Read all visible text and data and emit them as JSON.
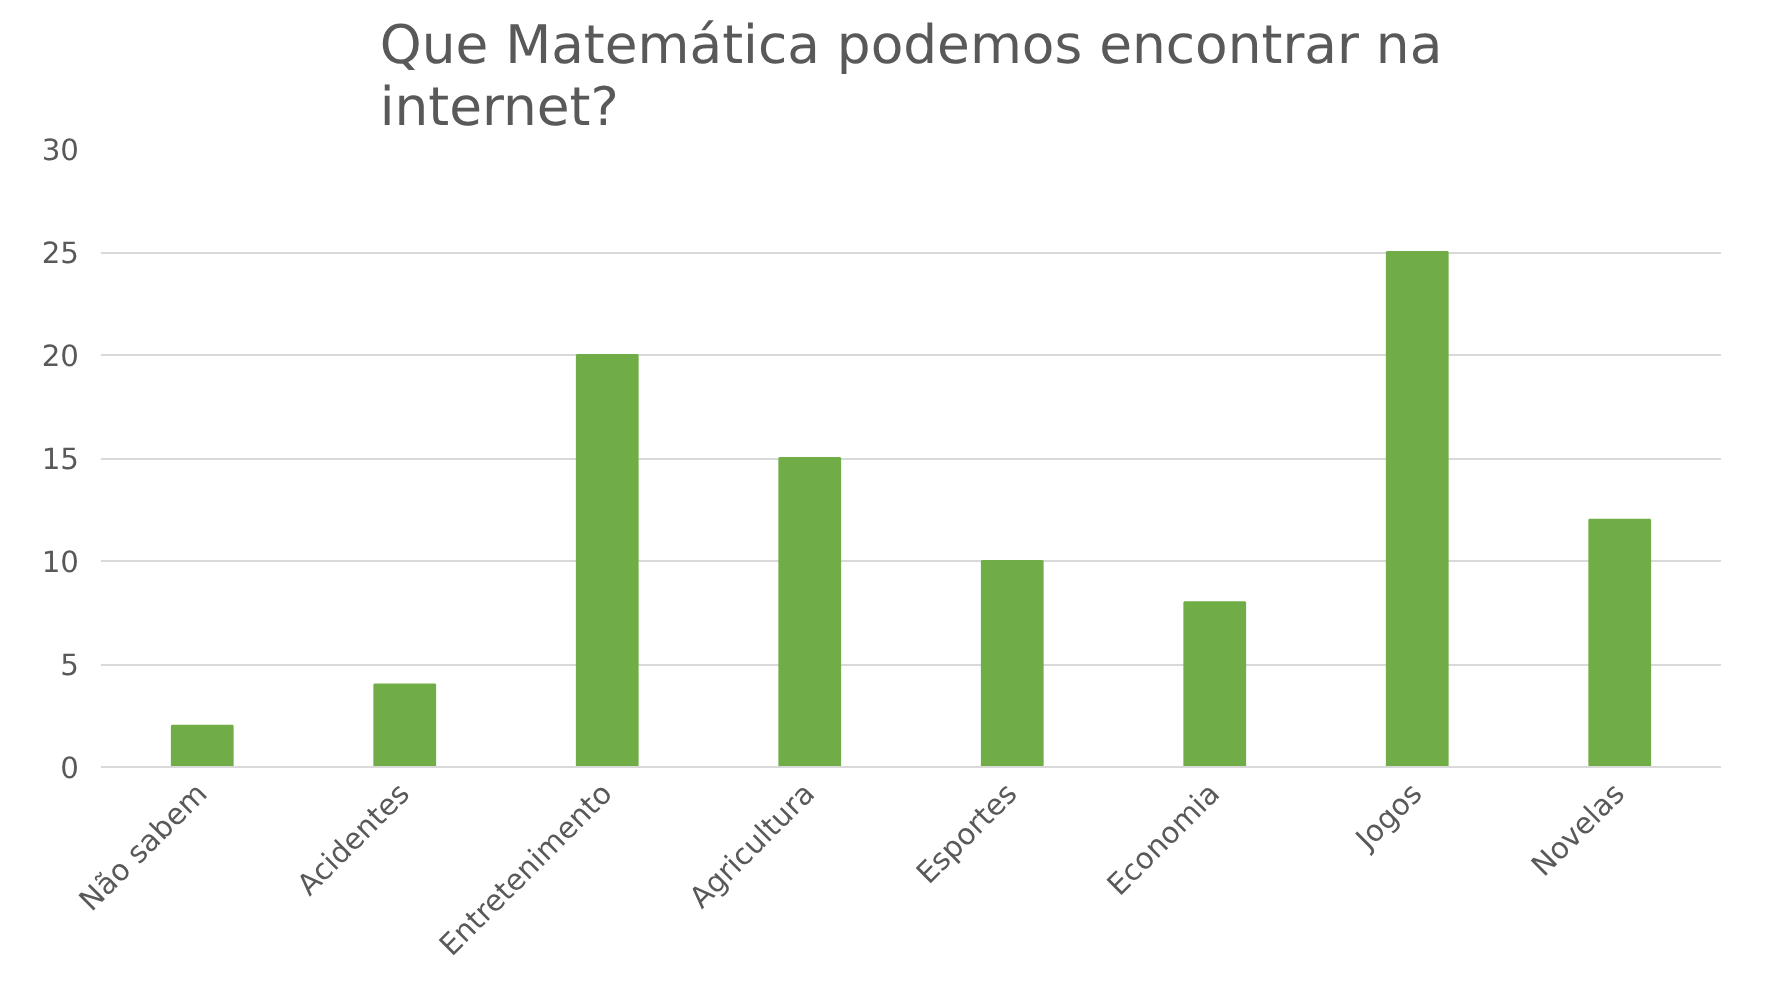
{
  "chart_data": {
    "type": "bar",
    "title": "Que Matemática podemos encontrar na internet?",
    "categories": [
      "Não sabem",
      "Acidentes",
      "Entretenimento",
      "Agricultura",
      "Esportes",
      "Economia",
      "Jogos",
      "Novelas"
    ],
    "values": [
      2,
      4,
      20,
      15,
      10,
      8,
      25,
      12
    ],
    "color": "#70ad47",
    "ylim": [
      0,
      30
    ],
    "yticks": [
      0,
      5,
      10,
      15,
      20,
      25,
      30
    ],
    "grid": "y"
  }
}
